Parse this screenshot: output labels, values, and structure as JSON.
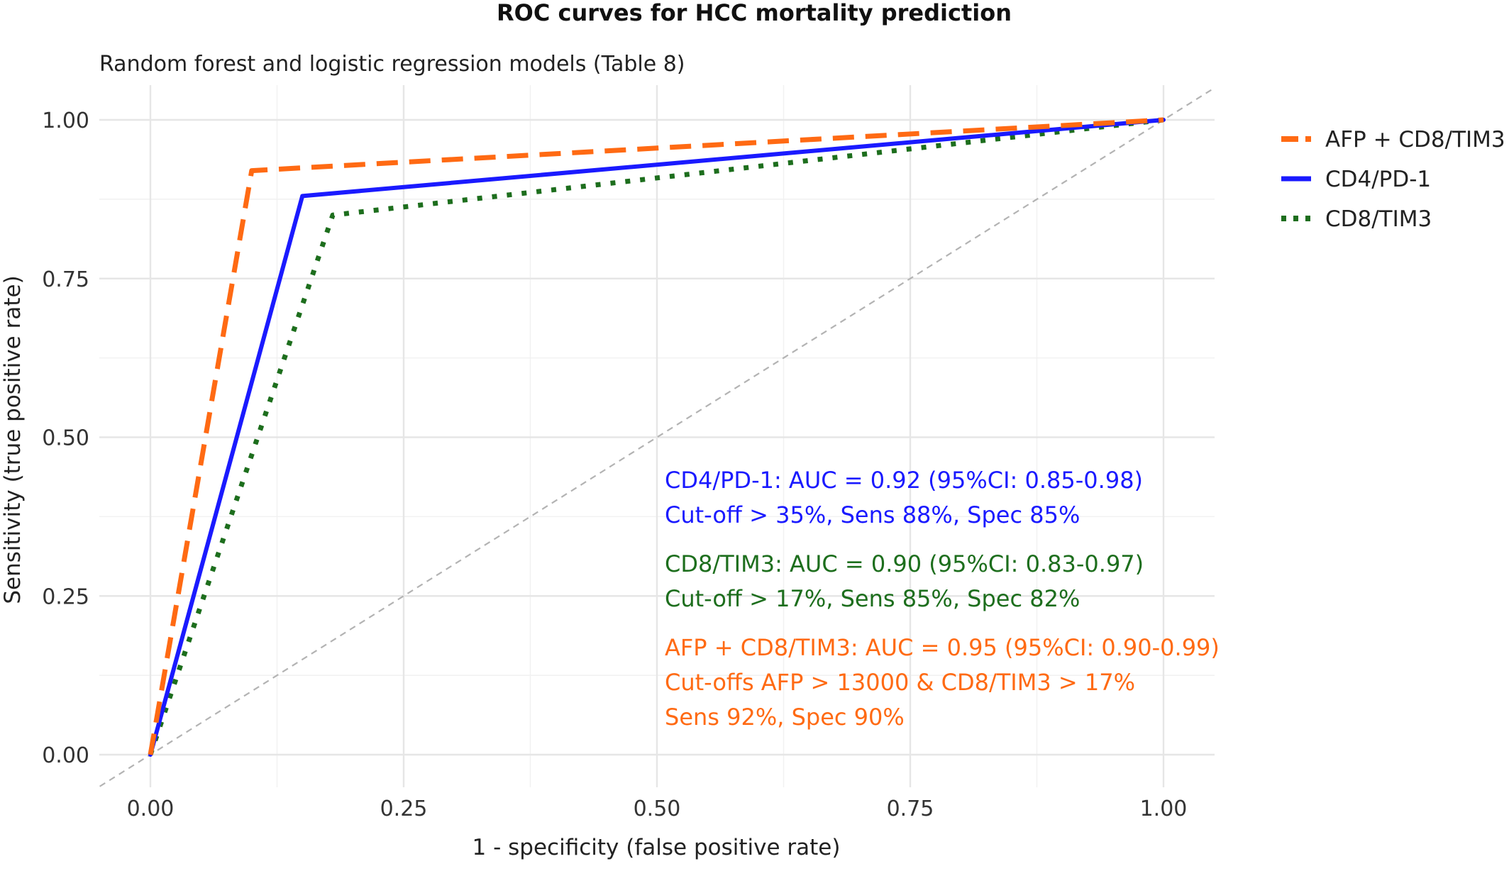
{
  "chart_data": {
    "type": "line",
    "title": "ROC curves for HCC mortality prediction",
    "subtitle": "Random forest and logistic regression models (Table 8)",
    "xlabel": "1 - specificity (false positive rate)",
    "ylabel": "Sensitivity (true positive rate)",
    "xlim": [
      0,
      1
    ],
    "ylim": [
      0,
      1
    ],
    "x_ticks": [
      "0.00",
      "0.25",
      "0.50",
      "0.75",
      "1.00"
    ],
    "y_ticks": [
      "0.00",
      "0.25",
      "0.50",
      "0.75",
      "1.00"
    ],
    "grid": true,
    "legend_position": "right",
    "reference_line": {
      "x": [
        0,
        1
      ],
      "y": [
        0,
        1
      ],
      "color": "#b3b3b3",
      "style": "dashed"
    },
    "series": [
      {
        "name": "AFP + CD8/TIM3",
        "color": "#ff6a13",
        "style": "dashed",
        "x": [
          0,
          0.1,
          1.0
        ],
        "y": [
          0,
          0.92,
          1.0
        ]
      },
      {
        "name": "CD4/PD-1",
        "color": "#1a1aff",
        "style": "solid",
        "x": [
          0,
          0.15,
          1.0
        ],
        "y": [
          0,
          0.88,
          1.0
        ]
      },
      {
        "name": "CD8/TIM3",
        "color": "#1d6e1d",
        "style": "dotted",
        "x": [
          0,
          0.18,
          1.0
        ],
        "y": [
          0,
          0.85,
          1.0
        ]
      }
    ],
    "annotations": [
      {
        "color": "#1a1aff",
        "lines": [
          "CD4/PD-1: AUC = 0.92 (95%CI: 0.85-0.98)",
          "Cut-off > 35%, Sens 88%, Spec 85%"
        ]
      },
      {
        "color": "#1d6e1d",
        "lines": [
          "CD8/TIM3: AUC = 0.90 (95%CI: 0.83-0.97)",
          "Cut-off > 17%, Sens 85%, Spec 82%"
        ]
      },
      {
        "color": "#ff6a13",
        "lines": [
          "AFP + CD8/TIM3: AUC = 0.95 (95%CI: 0.90-0.99)",
          "Cut-offs AFP > 13000 & CD8/TIM3 > 17%",
          "Sens 92%, Spec 90%"
        ]
      }
    ]
  }
}
